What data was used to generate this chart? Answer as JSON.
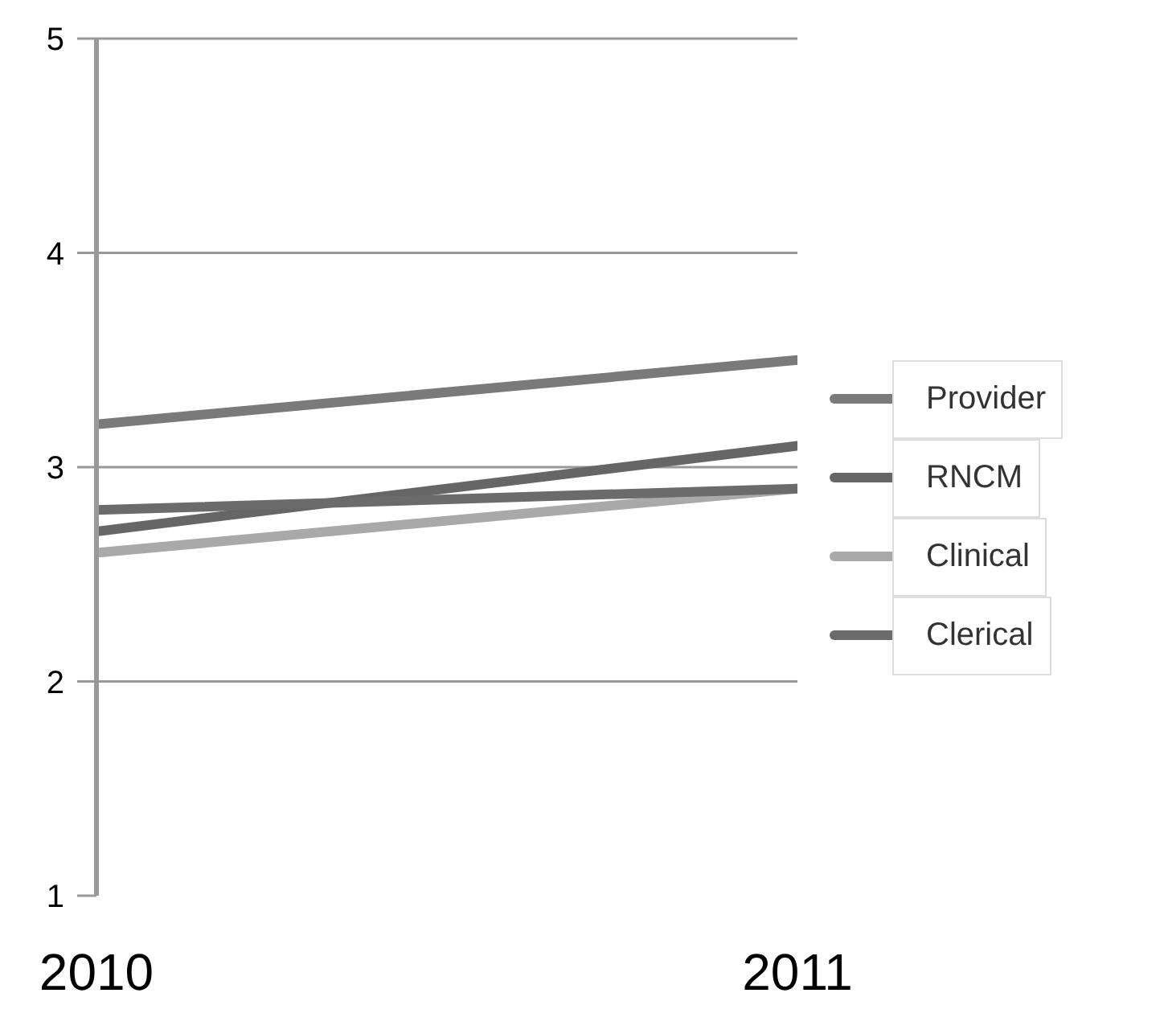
{
  "chart_data": {
    "type": "line",
    "x": [
      2010,
      2011
    ],
    "xlim": [
      2010,
      2011
    ],
    "xticks": [
      2010,
      2011
    ],
    "series": [
      {
        "name": "Provider",
        "color": "#7a7a7a",
        "values": [
          3.2,
          3.5
        ]
      },
      {
        "name": "RNCM",
        "color": "#666666",
        "values": [
          2.7,
          3.1
        ]
      },
      {
        "name": "Clinical",
        "color": "#a9a9a9",
        "values": [
          2.6,
          2.9
        ]
      },
      {
        "name": "Clerical",
        "color": "#6b6b6b",
        "values": [
          2.8,
          2.9
        ]
      }
    ],
    "ylim": [
      1,
      5
    ],
    "yticks": [
      1,
      2,
      3,
      4,
      5
    ],
    "grid": "y",
    "legend": "right",
    "marker": "none",
    "line_style": "solid"
  }
}
